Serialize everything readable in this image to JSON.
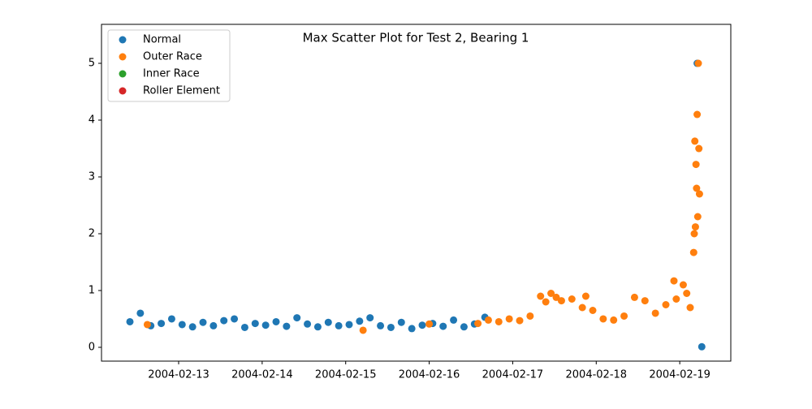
{
  "chart_data": {
    "type": "scatter",
    "title": "Max Scatter Plot for Test 2, Bearing 1",
    "xlim": [
      "2004-02-12 01:50",
      "2004-02-19 14:40"
    ],
    "xticks": [
      "2004-02-13",
      "2004-02-14",
      "2004-02-15",
      "2004-02-16",
      "2004-02-17",
      "2004-02-18",
      "2004-02-19"
    ],
    "ylim": [
      -0.243,
      5.686
    ],
    "yticks": [
      0,
      1,
      2,
      3,
      4,
      5
    ],
    "legend": "upper left",
    "series": [
      {
        "name": "Normal",
        "color": "#1f77b4",
        "x": [
          "2004-02-12 10:00",
          "2004-02-12 13:00",
          "2004-02-12 16:00",
          "2004-02-12 19:00",
          "2004-02-12 22:00",
          "2004-02-13 01:00",
          "2004-02-13 04:00",
          "2004-02-13 07:00",
          "2004-02-13 10:00",
          "2004-02-13 13:00",
          "2004-02-13 16:00",
          "2004-02-13 19:00",
          "2004-02-13 22:00",
          "2004-02-14 01:00",
          "2004-02-14 04:00",
          "2004-02-14 07:00",
          "2004-02-14 10:00",
          "2004-02-14 13:00",
          "2004-02-14 16:00",
          "2004-02-14 19:00",
          "2004-02-14 22:00",
          "2004-02-15 01:00",
          "2004-02-15 04:00",
          "2004-02-15 07:00",
          "2004-02-15 10:00",
          "2004-02-15 13:00",
          "2004-02-15 16:00",
          "2004-02-15 19:00",
          "2004-02-15 22:00",
          "2004-02-16 01:00",
          "2004-02-16 04:00",
          "2004-02-16 07:00",
          "2004-02-16 10:00",
          "2004-02-16 13:00",
          "2004-02-16 16:00",
          "2004-02-19 05:00",
          "2004-02-19 06:20"
        ],
        "values": [
          0.45,
          0.6,
          0.38,
          0.42,
          0.5,
          0.4,
          0.36,
          0.44,
          0.38,
          0.47,
          0.5,
          0.35,
          0.42,
          0.39,
          0.45,
          0.37,
          0.52,
          0.41,
          0.36,
          0.44,
          0.38,
          0.4,
          0.46,
          0.52,
          0.38,
          0.35,
          0.44,
          0.33,
          0.39,
          0.42,
          0.37,
          0.48,
          0.36,
          0.41,
          0.53,
          5.0,
          0.01
        ]
      },
      {
        "name": "Outer Race",
        "color": "#ff7f0e",
        "x": [
          "2004-02-12 15:00",
          "2004-02-15 05:00",
          "2004-02-16 00:00",
          "2004-02-16 14:00",
          "2004-02-16 17:00",
          "2004-02-16 20:00",
          "2004-02-16 23:00",
          "2004-02-17 02:00",
          "2004-02-17 05:00",
          "2004-02-17 08:00",
          "2004-02-17 09:30",
          "2004-02-17 11:00",
          "2004-02-17 12:30",
          "2004-02-17 14:00",
          "2004-02-17 17:00",
          "2004-02-17 20:00",
          "2004-02-17 21:00",
          "2004-02-17 23:00",
          "2004-02-18 02:00",
          "2004-02-18 05:00",
          "2004-02-18 08:00",
          "2004-02-18 11:00",
          "2004-02-18 14:00",
          "2004-02-18 17:00",
          "2004-02-18 20:00",
          "2004-02-18 22:20",
          "2004-02-18 23:00",
          "2004-02-19 01:00",
          "2004-02-19 02:00",
          "2004-02-19 03:00",
          "2004-02-19 04:00",
          "2004-02-19 04:10",
          "2004-02-19 04:20",
          "2004-02-19 04:30",
          "2004-02-19 04:40",
          "2004-02-19 04:50",
          "2004-02-19 05:00",
          "2004-02-19 05:10",
          "2004-02-19 05:20",
          "2004-02-19 05:30",
          "2004-02-19 05:40"
        ],
        "values": [
          0.4,
          0.3,
          0.41,
          0.42,
          0.48,
          0.45,
          0.5,
          0.47,
          0.55,
          0.9,
          0.8,
          0.95,
          0.88,
          0.82,
          0.85,
          0.7,
          0.9,
          0.65,
          0.5,
          0.48,
          0.55,
          0.88,
          0.82,
          0.6,
          0.75,
          1.17,
          0.85,
          1.1,
          0.95,
          0.7,
          1.67,
          2.0,
          3.63,
          2.12,
          3.22,
          2.8,
          4.1,
          2.3,
          5.0,
          3.5,
          2.7
        ]
      },
      {
        "name": "Inner Race",
        "color": "#2ca02c",
        "x": [],
        "values": []
      },
      {
        "name": "Roller Element",
        "color": "#d62728",
        "x": [],
        "values": []
      }
    ]
  }
}
